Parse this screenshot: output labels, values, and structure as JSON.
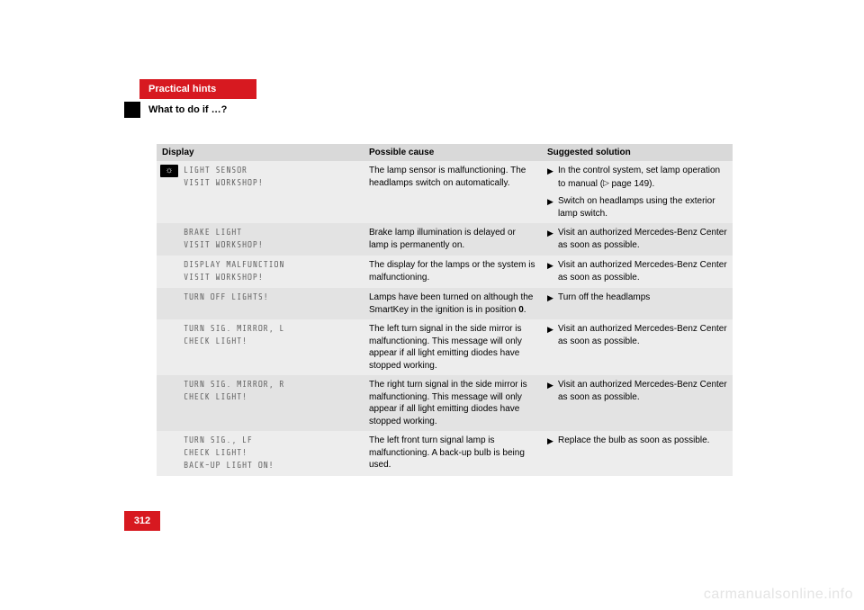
{
  "colors": {
    "accent": "#d71920",
    "head_bg": "#d9d9d9",
    "row_light": "#ededed",
    "row_dark": "#e3e3e3",
    "mono_text": "#6a6a6a"
  },
  "header": {
    "tab": "Practical hints",
    "subtitle": "What to do if …?"
  },
  "table": {
    "columns": [
      "Display",
      "Possible cause",
      "Suggested solution"
    ],
    "rows": [
      {
        "icon": "light",
        "display": "LIGHT SENSOR\nVISIT WORKSHOP!",
        "cause": "The lamp sensor is malfunctioning. The headlamps switch on automatically.",
        "solutions": [
          {
            "text_before": "In the control system, set lamp operation to manual (",
            "ref": "page 149",
            "text_after": ")."
          },
          {
            "text_before": "Switch on headlamps using the exterior lamp switch."
          }
        ]
      },
      {
        "display": "BRAKE LIGHT\nVISIT WORKSHOP!",
        "cause": "Brake lamp illumination is delayed or lamp is permanently on.",
        "solutions": [
          {
            "text_before": "Visit an authorized Mercedes-Benz Center as soon as possible."
          }
        ]
      },
      {
        "display": "DISPLAY MALFUNCTION\nVISIT WORKSHOP!",
        "cause": "The display for the lamps or the system is malfunctioning.",
        "solutions": [
          {
            "text_before": "Visit an authorized Mercedes-Benz Center as soon as possible."
          }
        ]
      },
      {
        "display": "TURN OFF LIGHTS!",
        "cause_before": "Lamps have been turned on although the SmartKey in the ignition is in position ",
        "cause_bold": "0",
        "cause_after": ".",
        "solutions": [
          {
            "text_before": "Turn off the headlamps"
          }
        ]
      },
      {
        "display": "TURN SIG. MIRROR, L\nCHECK LIGHT!",
        "cause": "The left turn signal in the side mirror is malfunctioning. This message will only appear if all light emitting diodes have stopped working.",
        "solutions": [
          {
            "text_before": "Visit an authorized Mercedes-Benz Center as soon as possible."
          }
        ]
      },
      {
        "display": "TURN SIG. MIRROR, R\nCHECK LIGHT!",
        "cause": "The right turn signal in the side mirror is malfunctioning. This message will only appear if all light emitting diodes have stopped working.",
        "solutions": [
          {
            "text_before": "Visit an authorized Mercedes-Benz Center as soon as possible."
          }
        ]
      },
      {
        "display": "TURN SIG., LF\nCHECK LIGHT!\nBACK-UP LIGHT ON!",
        "cause": "The left front turn signal lamp is malfunctioning. A back-up bulb is being used.",
        "solutions": [
          {
            "text_before": "Replace the bulb as soon as possible."
          }
        ]
      }
    ]
  },
  "page_number": "312",
  "watermark": "carmanualsonline.info"
}
